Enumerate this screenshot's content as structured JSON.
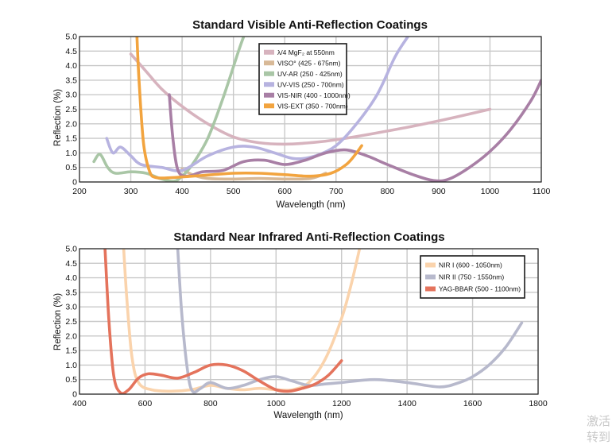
{
  "chart_data": [
    {
      "type": "line",
      "title": "Standard Visible Anti-Reflection Coatings",
      "xlabel": "Wavelength (nm)",
      "ylabel": "Reflection (%)",
      "xlim": [
        200,
        1100
      ],
      "ylim": [
        0,
        5.0
      ],
      "xticks": [
        "200",
        "300",
        "400",
        "500",
        "600",
        "700",
        "800",
        "900",
        "1000",
        "1100"
      ],
      "yticks": [
        "0",
        "0.5",
        "1.0",
        "1.5",
        "2.0",
        "2.5",
        "3.0",
        "3.5",
        "4.0",
        "4.5",
        "5.0"
      ],
      "grid": true,
      "legend_position": "top-center",
      "series": [
        {
          "name": "λ/4 MgF₂ at 550nm",
          "color": "#d7b3be",
          "points": [
            [
              300,
              4.4
            ],
            [
              330,
              3.8
            ],
            [
              360,
              3.2
            ],
            [
              400,
              2.6
            ],
            [
              450,
              2.0
            ],
            [
              500,
              1.55
            ],
            [
              550,
              1.35
            ],
            [
              600,
              1.3
            ],
            [
              650,
              1.35
            ],
            [
              700,
              1.45
            ],
            [
              800,
              1.75
            ],
            [
              900,
              2.1
            ],
            [
              1000,
              2.5
            ]
          ]
        },
        {
          "name": "VISO° (425 - 675nm)",
          "color": "#d8b997",
          "points": [
            [
              400,
              0.45
            ],
            [
              420,
              0.25
            ],
            [
              450,
              0.12
            ],
            [
              500,
              0.1
            ],
            [
              550,
              0.12
            ],
            [
              600,
              0.1
            ],
            [
              650,
              0.12
            ],
            [
              680,
              0.3
            ]
          ]
        },
        {
          "name": "UV-AR (250 - 425nm)",
          "color": "#a9c6a6",
          "points": [
            [
              228,
              0.7
            ],
            [
              240,
              0.95
            ],
            [
              255,
              0.5
            ],
            [
              270,
              0.3
            ],
            [
              300,
              0.35
            ],
            [
              330,
              0.3
            ],
            [
              360,
              0.1
            ],
            [
              385,
              0.03
            ],
            [
              400,
              0.2
            ],
            [
              420,
              0.6
            ],
            [
              450,
              1.5
            ],
            [
              480,
              2.9
            ],
            [
              510,
              4.5
            ],
            [
              520,
              5.0
            ]
          ]
        },
        {
          "name": "UV-VIS (250 - 700nm)",
          "color": "#b7b3e0",
          "points": [
            [
              253,
              1.5
            ],
            [
              265,
              1.0
            ],
            [
              280,
              1.2
            ],
            [
              300,
              0.9
            ],
            [
              320,
              0.6
            ],
            [
              360,
              0.5
            ],
            [
              400,
              0.4
            ],
            [
              450,
              0.9
            ],
            [
              500,
              1.2
            ],
            [
              540,
              1.2
            ],
            [
              580,
              1.0
            ],
            [
              620,
              0.8
            ],
            [
              660,
              0.9
            ],
            [
              700,
              1.25
            ],
            [
              740,
              2.0
            ],
            [
              780,
              3.0
            ],
            [
              815,
              4.3
            ],
            [
              840,
              5.0
            ]
          ]
        },
        {
          "name": "VIS-NIR (400 - 1000nm)",
          "color": "#a87fa5",
          "points": [
            [
              375,
              3.0
            ],
            [
              382,
              1.5
            ],
            [
              392,
              0.4
            ],
            [
              410,
              0.2
            ],
            [
              440,
              0.35
            ],
            [
              480,
              0.4
            ],
            [
              520,
              0.7
            ],
            [
              560,
              0.75
            ],
            [
              600,
              0.6
            ],
            [
              640,
              0.75
            ],
            [
              680,
              1.0
            ],
            [
              720,
              1.1
            ],
            [
              760,
              0.9
            ],
            [
              800,
              0.6
            ],
            [
              850,
              0.25
            ],
            [
              890,
              0.05
            ],
            [
              920,
              0.1
            ],
            [
              960,
              0.5
            ],
            [
              1000,
              1.05
            ],
            [
              1040,
              1.8
            ],
            [
              1080,
              2.8
            ],
            [
              1100,
              3.5
            ]
          ]
        },
        {
          "name": "VIS-EXT (350 - 700nm)",
          "color": "#f2a43f",
          "points": [
            [
              312,
              5.0
            ],
            [
              316,
              3.5
            ],
            [
              325,
              1.3
            ],
            [
              337,
              0.35
            ],
            [
              350,
              0.15
            ],
            [
              380,
              0.15
            ],
            [
              420,
              0.2
            ],
            [
              460,
              0.25
            ],
            [
              500,
              0.3
            ],
            [
              550,
              0.3
            ],
            [
              600,
              0.25
            ],
            [
              650,
              0.2
            ],
            [
              690,
              0.3
            ],
            [
              720,
              0.6
            ],
            [
              740,
              1.0
            ],
            [
              750,
              1.25
            ]
          ]
        }
      ]
    },
    {
      "type": "line",
      "title": "Standard Near Infrared Anti-Reflection Coatings",
      "xlabel": "Wavelength (nm)",
      "ylabel": "Reflection (%)",
      "xlim": [
        400,
        1800
      ],
      "ylim": [
        0,
        5.0
      ],
      "xticks": [
        "400",
        "600",
        "800",
        "1000",
        "1200",
        "1400",
        "1600",
        "1800"
      ],
      "yticks": [
        "0",
        "0.5",
        "1.0",
        "1.5",
        "2.0",
        "2.5",
        "3.0",
        "3.5",
        "4.0",
        "4.5",
        "5.0"
      ],
      "grid": true,
      "legend_position": "top-right",
      "series": [
        {
          "name": "NIR I (600 - 1050nm)",
          "color": "#fad3ac",
          "points": [
            [
              535,
              5.0
            ],
            [
              545,
              3.2
            ],
            [
              560,
              1.3
            ],
            [
              580,
              0.4
            ],
            [
              620,
              0.15
            ],
            [
              680,
              0.1
            ],
            [
              740,
              0.15
            ],
            [
              800,
              0.3
            ],
            [
              850,
              0.2
            ],
            [
              900,
              0.15
            ],
            [
              950,
              0.2
            ],
            [
              1000,
              0.15
            ],
            [
              1050,
              0.15
            ],
            [
              1100,
              0.4
            ],
            [
              1150,
              1.2
            ],
            [
              1200,
              2.6
            ],
            [
              1230,
              3.8
            ],
            [
              1255,
              5.0
            ]
          ]
        },
        {
          "name": "NIR II (750 - 1550nm)",
          "color": "#b7b9cc",
          "points": [
            [
              700,
              5.0
            ],
            [
              712,
              2.8
            ],
            [
              730,
              0.8
            ],
            [
              745,
              0.1
            ],
            [
              770,
              0.2
            ],
            [
              800,
              0.4
            ],
            [
              850,
              0.2
            ],
            [
              900,
              0.3
            ],
            [
              950,
              0.5
            ],
            [
              1000,
              0.6
            ],
            [
              1050,
              0.45
            ],
            [
              1100,
              0.3
            ],
            [
              1150,
              0.35
            ],
            [
              1200,
              0.4
            ],
            [
              1300,
              0.5
            ],
            [
              1400,
              0.4
            ],
            [
              1500,
              0.25
            ],
            [
              1560,
              0.4
            ],
            [
              1600,
              0.6
            ],
            [
              1650,
              1.0
            ],
            [
              1700,
              1.6
            ],
            [
              1750,
              2.45
            ]
          ]
        },
        {
          "name": "YAG-BBAR (500 - 1100nm)",
          "color": "#e4735c",
          "points": [
            [
              478,
              5.0
            ],
            [
              490,
              2.5
            ],
            [
              505,
              0.6
            ],
            [
              525,
              0.05
            ],
            [
              550,
              0.15
            ],
            [
              580,
              0.55
            ],
            [
              610,
              0.7
            ],
            [
              650,
              0.65
            ],
            [
              700,
              0.55
            ],
            [
              750,
              0.75
            ],
            [
              800,
              1.0
            ],
            [
              850,
              1.0
            ],
            [
              900,
              0.8
            ],
            [
              950,
              0.45
            ],
            [
              1000,
              0.15
            ],
            [
              1040,
              0.1
            ],
            [
              1080,
              0.2
            ],
            [
              1120,
              0.35
            ],
            [
              1160,
              0.65
            ],
            [
              1200,
              1.15
            ]
          ]
        }
      ]
    }
  ],
  "watermark": {
    "line1": "激活",
    "line2": "转到"
  }
}
